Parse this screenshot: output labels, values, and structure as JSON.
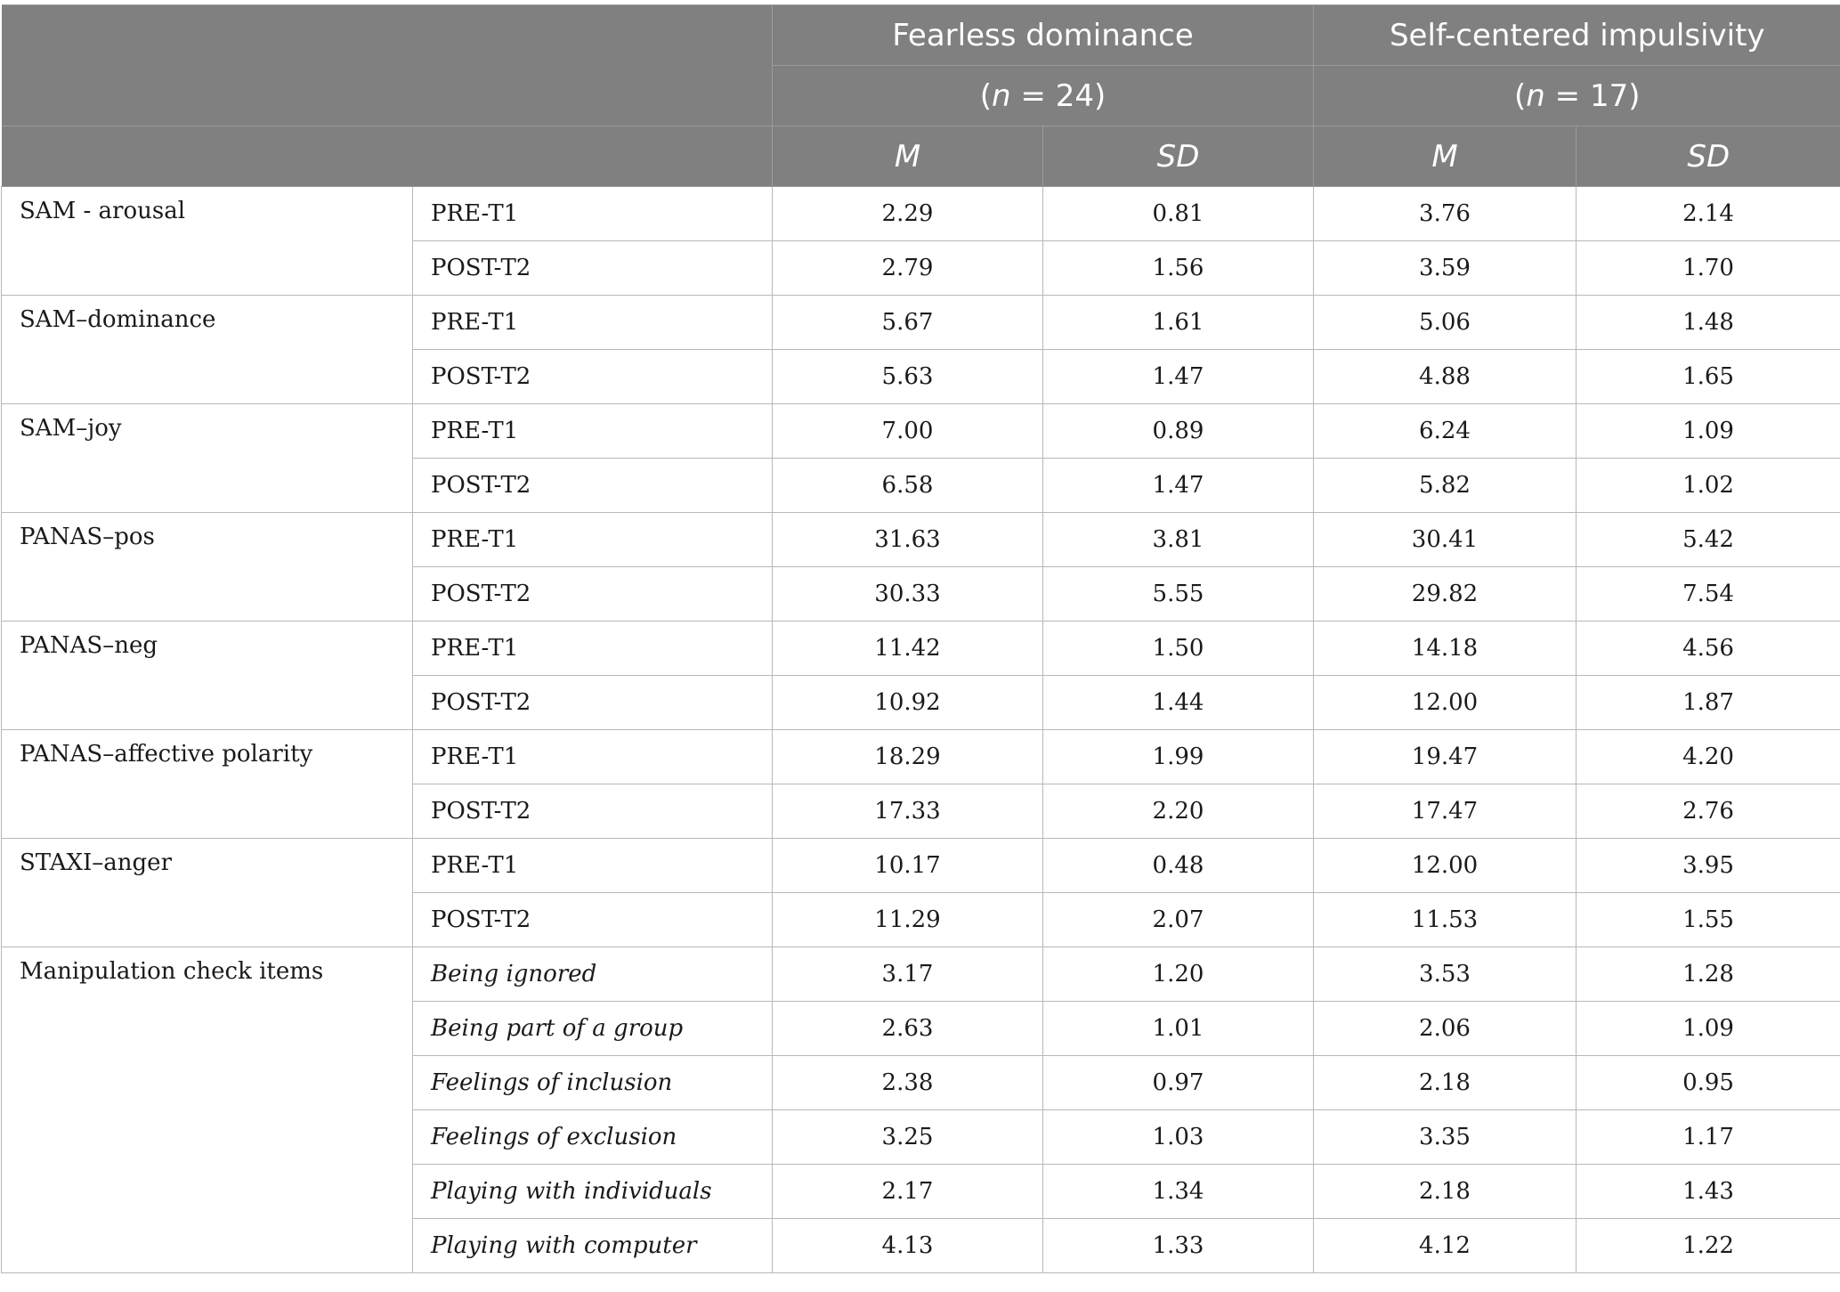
{
  "header": {
    "groups": [
      {
        "name": "Fearless dominance",
        "n_label": "n",
        "n_value": " = 24"
      },
      {
        "name": "Self-centered impulsivity",
        "n_label": "n",
        "n_value": " = 17"
      }
    ],
    "stat_labels": [
      "M",
      "SD",
      "M",
      "SD"
    ]
  },
  "rows": [
    {
      "measure": "SAM - arousal",
      "items": [
        {
          "label": "PRE-T1",
          "italic": false,
          "values": [
            "2.29",
            "0.81",
            "3.76",
            "2.14"
          ]
        },
        {
          "label": "POST-T2",
          "italic": false,
          "values": [
            "2.79",
            "1.56",
            "3.59",
            "1.70"
          ]
        }
      ]
    },
    {
      "measure": "SAM–dominance",
      "items": [
        {
          "label": "PRE-T1",
          "italic": false,
          "values": [
            "5.67",
            "1.61",
            "5.06",
            "1.48"
          ]
        },
        {
          "label": "POST-T2",
          "italic": false,
          "values": [
            "5.63",
            "1.47",
            "4.88",
            "1.65"
          ]
        }
      ]
    },
    {
      "measure": "SAM–joy",
      "items": [
        {
          "label": "PRE-T1",
          "italic": false,
          "values": [
            "7.00",
            "0.89",
            "6.24",
            "1.09"
          ]
        },
        {
          "label": "POST-T2",
          "italic": false,
          "values": [
            "6.58",
            "1.47",
            "5.82",
            "1.02"
          ]
        }
      ]
    },
    {
      "measure": "PANAS–pos",
      "items": [
        {
          "label": "PRE-T1",
          "italic": false,
          "values": [
            "31.63",
            "3.81",
            "30.41",
            "5.42"
          ]
        },
        {
          "label": "POST-T2",
          "italic": false,
          "values": [
            "30.33",
            "5.55",
            "29.82",
            "7.54"
          ]
        }
      ]
    },
    {
      "measure": "PANAS–neg",
      "items": [
        {
          "label": "PRE-T1",
          "italic": false,
          "values": [
            "11.42",
            "1.50",
            "14.18",
            "4.56"
          ]
        },
        {
          "label": "POST-T2",
          "italic": false,
          "values": [
            "10.92",
            "1.44",
            "12.00",
            "1.87"
          ]
        }
      ]
    },
    {
      "measure": "PANAS–affective polarity",
      "items": [
        {
          "label": "PRE-T1",
          "italic": false,
          "values": [
            "18.29",
            "1.99",
            "19.47",
            "4.20"
          ]
        },
        {
          "label": "POST-T2",
          "italic": false,
          "values": [
            "17.33",
            "2.20",
            "17.47",
            "2.76"
          ]
        }
      ]
    },
    {
      "measure": "STAXI–anger",
      "items": [
        {
          "label": "PRE-T1",
          "italic": false,
          "values": [
            "10.17",
            "0.48",
            "12.00",
            "3.95"
          ]
        },
        {
          "label": "POST-T2",
          "italic": false,
          "values": [
            "11.29",
            "2.07",
            "11.53",
            "1.55"
          ]
        }
      ]
    },
    {
      "measure": "Manipulation check items",
      "items": [
        {
          "label": "Being ignored",
          "italic": true,
          "values": [
            "3.17",
            "1.20",
            "3.53",
            "1.28"
          ]
        },
        {
          "label": "Being part of a group",
          "italic": true,
          "values": [
            "2.63",
            "1.01",
            "2.06",
            "1.09"
          ]
        },
        {
          "label": "Feelings of inclusion",
          "italic": true,
          "values": [
            "2.38",
            "0.97",
            "2.18",
            "0.95"
          ]
        },
        {
          "label": "Feelings of exclusion",
          "italic": true,
          "values": [
            "3.25",
            "1.03",
            "3.35",
            "1.17"
          ]
        },
        {
          "label": "Playing with individuals",
          "italic": true,
          "values": [
            "2.17",
            "1.34",
            "2.18",
            "1.43"
          ]
        },
        {
          "label": "Playing with computer",
          "italic": true,
          "values": [
            "4.13",
            "1.33",
            "4.12",
            "1.22"
          ]
        }
      ]
    }
  ]
}
